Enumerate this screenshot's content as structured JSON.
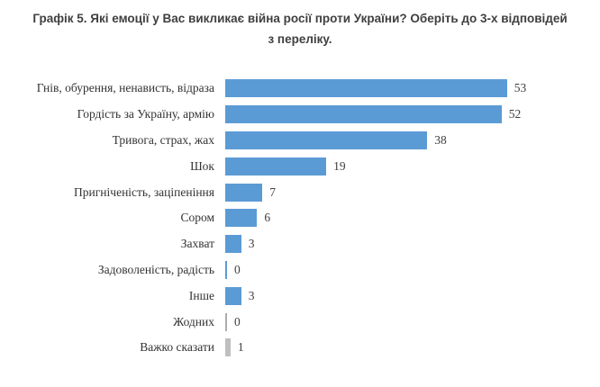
{
  "title": {
    "line1": "Графік 5. Які емоції у Вас викликає війна росії проти України? Оберіть до 3-х відповідей",
    "line2": "з переліку.",
    "full": "Графік 5. Які емоції у Вас викликає війна росії проти України? Оберіть до 3-х відповідей з переліку."
  },
  "colors": {
    "bar_blue": "#5B9BD5",
    "bar_gray": "#BFBFBF",
    "bar_gray_thin": "#ADADAD",
    "title_text": "#3F3F3F",
    "label_text": "#333333",
    "background": "#FFFFFF"
  },
  "chart_data": {
    "type": "bar",
    "orientation": "horizontal",
    "title": "Графік 5. Які емоції у Вас викликає війна росії проти України? Оберіть до 3-х відповідей з переліку.",
    "categories": [
      "Гнів, обурення, ненависть, відраза",
      "Гордість за Україну, армію",
      "Тривога, страх, жах",
      "Шок",
      "Пригніченість, заціпеніння",
      "Сором",
      "Захват",
      "Задоволеність, радість",
      "Інше",
      "Жодних",
      "Важко сказати"
    ],
    "values": [
      53,
      52,
      38,
      19,
      7,
      6,
      3,
      0,
      3,
      0,
      1
    ],
    "bar_colors": [
      "#5B9BD5",
      "#5B9BD5",
      "#5B9BD5",
      "#5B9BD5",
      "#5B9BD5",
      "#5B9BD5",
      "#5B9BD5",
      "#5B9BD5",
      "#5B9BD5",
      "#ADADAD",
      "#BFBFBF"
    ],
    "data_labels": [
      "53",
      "52",
      "38",
      "19",
      "7",
      "6",
      "3",
      "0",
      "3",
      "0",
      "1"
    ],
    "xlabel": "",
    "ylabel": "",
    "xlim": [
      0,
      56
    ],
    "grid": false,
    "legend": "none"
  }
}
